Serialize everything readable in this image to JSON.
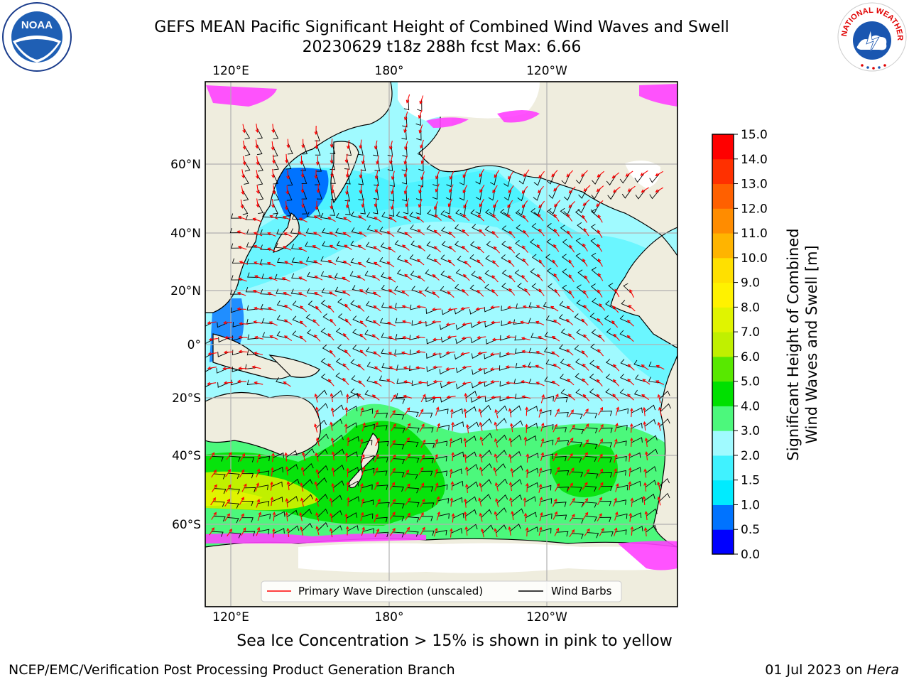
{
  "header": {
    "title_line1": "GEFS MEAN Pacific Significant Height of Combined Wind Waves and Swell",
    "title_line2": "20230629 t18z 288h fcst   Max: 6.66"
  },
  "logos": {
    "left": {
      "icon": "noaa-logo-icon",
      "text": "NOAA"
    },
    "right": {
      "icon": "nws-logo-icon",
      "text": "NATIONAL WEATHER SERVICE"
    }
  },
  "map": {
    "lon_labels_top": [
      "120°E",
      "180°",
      "120°W"
    ],
    "lon_labels_bottom": [
      "120°E",
      "180°",
      "120°W"
    ],
    "lat_labels": [
      "60°N",
      "40°N",
      "20°N",
      "0°",
      "20°S",
      "40°S",
      "60°S"
    ],
    "legend": {
      "items": [
        {
          "label": "Primary Wave Direction (unscaled)",
          "color": "#ff0000"
        },
        {
          "label": "Wind Barbs",
          "color": "#000000"
        }
      ]
    },
    "colors": {
      "land": "#efedde",
      "ice_free_polar": "#ffffff",
      "grid": "#b0b0b0"
    }
  },
  "colorbar": {
    "label_line1": "Significant Height of Combined",
    "label_line2": "Wind Waves and Swell [m]",
    "ticks": [
      "0.0",
      "0.5",
      "1.0",
      "1.5",
      "2.0",
      "3.0",
      "4.0",
      "5.0",
      "6.0",
      "7.0",
      "8.0",
      "9.0",
      "10.0",
      "11.0",
      "12.0",
      "13.0",
      "14.0",
      "15.0"
    ],
    "colors": [
      "#0000ff",
      "#0073ff",
      "#00ebff",
      "#40f2ff",
      "#a0faff",
      "#4cf87c",
      "#00e000",
      "#58e800",
      "#c0f000",
      "#e0f400",
      "#fff200",
      "#ffe000",
      "#ffb400",
      "#ff8c00",
      "#ff6000",
      "#ff3000",
      "#ff0000"
    ]
  },
  "note": "Sea Ice Concentration > 15% is shown in pink to yellow",
  "footer": {
    "left": "NCEP/EMC/Verification Post Processing Product Generation Branch",
    "right_prefix": "01 Jul 2023 on ",
    "right_host": "Hera"
  }
}
